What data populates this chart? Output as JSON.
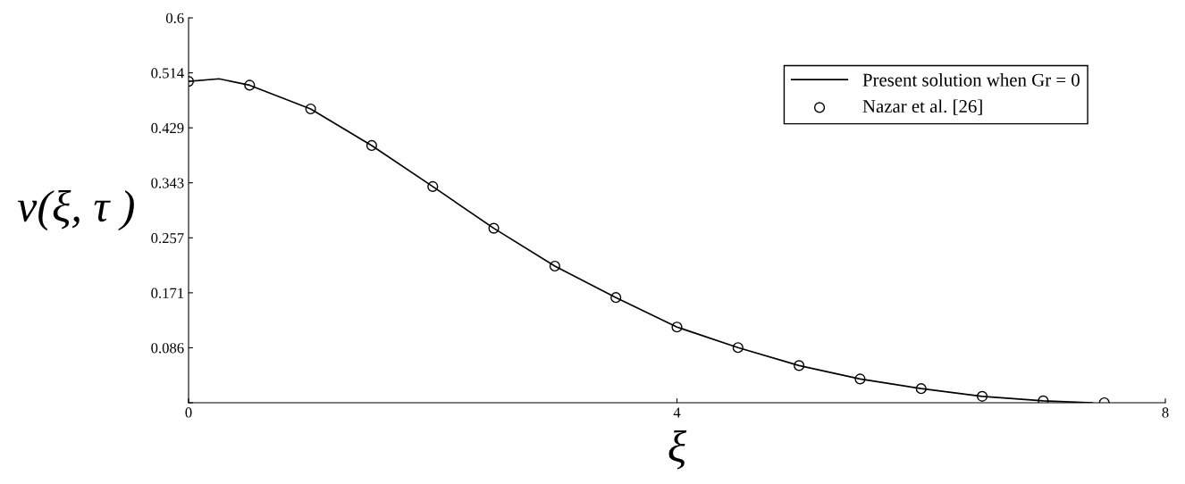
{
  "chart_data": {
    "type": "line",
    "xlabel": "ξ",
    "ylabel": "v(ξ, τ )",
    "xlim": [
      0,
      8
    ],
    "ylim": [
      0,
      0.6
    ],
    "xticks": [
      0,
      4,
      8
    ],
    "yticks": [
      {
        "value": 0,
        "label": null
      },
      {
        "value": 0.0857,
        "label": "0.086"
      },
      {
        "value": 0.1714,
        "label": "0.171"
      },
      {
        "value": 0.2571,
        "label": "0.257"
      },
      {
        "value": 0.3429,
        "label": "0.343"
      },
      {
        "value": 0.4286,
        "label": "0.429"
      },
      {
        "value": 0.5143,
        "label": "0.514"
      },
      0.6
    ],
    "grid": false,
    "legend": "top right",
    "series": [
      {
        "name": "Present solution when Gr = 0",
        "color": "#000000",
        "marker": "none",
        "line_style": "solid",
        "x": [
          0,
          0.25,
          0.5,
          1,
          1.5,
          2,
          2.5,
          3,
          3.5,
          4,
          4.5,
          5,
          5.5,
          6,
          6.5,
          7,
          7.4
        ],
        "values": [
          0.501,
          0.505,
          0.495,
          0.458,
          0.401,
          0.337,
          0.272,
          0.213,
          0.164,
          0.118,
          0.086,
          0.058,
          0.037,
          0.022,
          0.01,
          0.003,
          0.0
        ]
      },
      {
        "name": "Nazar et al. [26]",
        "type": "scatter",
        "color": "#000000",
        "marker": "circle",
        "x": [
          0,
          0.5,
          1,
          1.5,
          2,
          2.5,
          3,
          3.5,
          4,
          4.5,
          5,
          5.5,
          6,
          6.5,
          7,
          7.5
        ],
        "values": [
          0.501,
          0.495,
          0.458,
          0.401,
          0.337,
          0.272,
          0.213,
          0.164,
          0.118,
          0.086,
          0.058,
          0.037,
          0.022,
          0.01,
          0.003,
          0.0
        ]
      }
    ]
  }
}
